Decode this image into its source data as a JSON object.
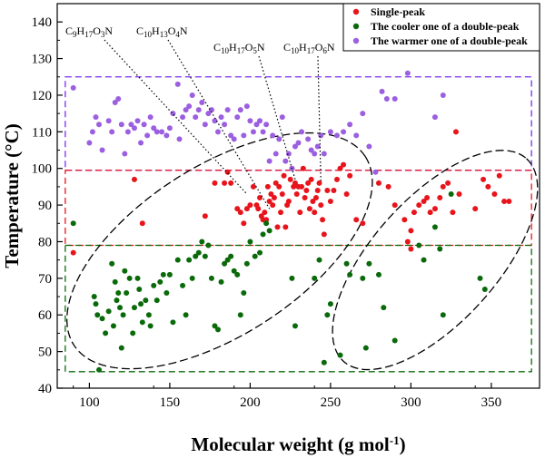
{
  "chart_data": {
    "type": "scatter",
    "title": "",
    "xlabel": "Molecular weight (g mol-1)",
    "ylabel": "Temperature (°C)",
    "xlim": [
      80,
      380
    ],
    "ylim": [
      40,
      145
    ],
    "xticks": [
      100,
      150,
      200,
      250,
      300,
      350
    ],
    "yticks": [
      40,
      50,
      60,
      70,
      80,
      90,
      100,
      110,
      120,
      130,
      140
    ],
    "grid": false,
    "legend_position": "top-right",
    "series": [
      {
        "name": "Single-peak",
        "color": "#e8141c",
        "points": [
          [
            90,
            77
          ],
          [
            128,
            97
          ],
          [
            133,
            85
          ],
          [
            172,
            87
          ],
          [
            178,
            96
          ],
          [
            184,
            96
          ],
          [
            186,
            99
          ],
          [
            188,
            96
          ],
          [
            192,
            89
          ],
          [
            194,
            88
          ],
          [
            196,
            85
          ],
          [
            198,
            89
          ],
          [
            200,
            90
          ],
          [
            202,
            95
          ],
          [
            204,
            90
          ],
          [
            205,
            89
          ],
          [
            206,
            92
          ],
          [
            207,
            87
          ],
          [
            208,
            86
          ],
          [
            209,
            88
          ],
          [
            210,
            86
          ],
          [
            211,
            95
          ],
          [
            212,
            91
          ],
          [
            213,
            93
          ],
          [
            214,
            90
          ],
          [
            215,
            92
          ],
          [
            216,
            96
          ],
          [
            217,
            84
          ],
          [
            218,
            95
          ],
          [
            219,
            88
          ],
          [
            220,
            93
          ],
          [
            221,
            98
          ],
          [
            222,
            84
          ],
          [
            223,
            90
          ],
          [
            224,
            91
          ],
          [
            225,
            97
          ],
          [
            226,
            100
          ],
          [
            227,
            95
          ],
          [
            228,
            96
          ],
          [
            229,
            93
          ],
          [
            230,
            95
          ],
          [
            231,
            88
          ],
          [
            232,
            95
          ],
          [
            233,
            100
          ],
          [
            234,
            92
          ],
          [
            235,
            94
          ],
          [
            236,
            96
          ],
          [
            237,
            89
          ],
          [
            238,
            97
          ],
          [
            239,
            91
          ],
          [
            240,
            88
          ],
          [
            241,
            92
          ],
          [
            242,
            94
          ],
          [
            243,
            96
          ],
          [
            244,
            90
          ],
          [
            245,
            86
          ],
          [
            246,
            82
          ],
          [
            248,
            94
          ],
          [
            250,
            91
          ],
          [
            252,
            94
          ],
          [
            254,
            97
          ],
          [
            256,
            100
          ],
          [
            258,
            101
          ],
          [
            260,
            93
          ],
          [
            262,
            98
          ],
          [
            266,
            86
          ],
          [
            270,
            85
          ],
          [
            280,
            96
          ],
          [
            286,
            95
          ],
          [
            290,
            90
          ],
          [
            296,
            86
          ],
          [
            298,
            80
          ],
          [
            300,
            83
          ],
          [
            302,
            88
          ],
          [
            305,
            90
          ],
          [
            308,
            91
          ],
          [
            310,
            92
          ],
          [
            312,
            88
          ],
          [
            315,
            89
          ],
          [
            318,
            92
          ],
          [
            320,
            95
          ],
          [
            323,
            96
          ],
          [
            326,
            88
          ],
          [
            328,
            110
          ],
          [
            330,
            93
          ],
          [
            340,
            89
          ],
          [
            345,
            97
          ],
          [
            348,
            95
          ],
          [
            352,
            93
          ],
          [
            355,
            98
          ],
          [
            358,
            91
          ],
          [
            361,
            91
          ],
          [
            300,
            78
          ]
        ]
      },
      {
        "name": "The cooler one of a double-peak",
        "color": "#0a6a0a",
        "points": [
          [
            90,
            85
          ],
          [
            103,
            65
          ],
          [
            104,
            63
          ],
          [
            105,
            60
          ],
          [
            106,
            45
          ],
          [
            108,
            59
          ],
          [
            110,
            55
          ],
          [
            112,
            61
          ],
          [
            114,
            74
          ],
          [
            115,
            57
          ],
          [
            116,
            69
          ],
          [
            117,
            64
          ],
          [
            118,
            66
          ],
          [
            119,
            62
          ],
          [
            120,
            51
          ],
          [
            121,
            60
          ],
          [
            122,
            72
          ],
          [
            123,
            66
          ],
          [
            125,
            70
          ],
          [
            127,
            55
          ],
          [
            128,
            62
          ],
          [
            130,
            70
          ],
          [
            131,
            67
          ],
          [
            132,
            63
          ],
          [
            133,
            58
          ],
          [
            135,
            64
          ],
          [
            137,
            60
          ],
          [
            138,
            57
          ],
          [
            140,
            68
          ],
          [
            142,
            64
          ],
          [
            144,
            69
          ],
          [
            146,
            71
          ],
          [
            148,
            66
          ],
          [
            150,
            71
          ],
          [
            152,
            58
          ],
          [
            155,
            75
          ],
          [
            158,
            68
          ],
          [
            160,
            60
          ],
          [
            162,
            75
          ],
          [
            164,
            70
          ],
          [
            166,
            76
          ],
          [
            168,
            77
          ],
          [
            170,
            80
          ],
          [
            172,
            76
          ],
          [
            174,
            79
          ],
          [
            176,
            70
          ],
          [
            178,
            57
          ],
          [
            180,
            56
          ],
          [
            182,
            69
          ],
          [
            184,
            74
          ],
          [
            186,
            75
          ],
          [
            188,
            76
          ],
          [
            190,
            72
          ],
          [
            192,
            71
          ],
          [
            194,
            60
          ],
          [
            196,
            66
          ],
          [
            198,
            74
          ],
          [
            200,
            80
          ],
          [
            203,
            76
          ],
          [
            206,
            77
          ],
          [
            208,
            82
          ],
          [
            210,
            85
          ],
          [
            212,
            83
          ],
          [
            226,
            70
          ],
          [
            228,
            57
          ],
          [
            240,
            70
          ],
          [
            243,
            75
          ],
          [
            246,
            47
          ],
          [
            248,
            60
          ],
          [
            250,
            63
          ],
          [
            256,
            49
          ],
          [
            260,
            74
          ],
          [
            262,
            71
          ],
          [
            270,
            70
          ],
          [
            272,
            51
          ],
          [
            274,
            74
          ],
          [
            280,
            71
          ],
          [
            283,
            62
          ],
          [
            290,
            53
          ],
          [
            305,
            79
          ],
          [
            308,
            75
          ],
          [
            315,
            84
          ],
          [
            318,
            78
          ],
          [
            320,
            60
          ],
          [
            325,
            93
          ],
          [
            343,
            70
          ],
          [
            346,
            67
          ]
        ]
      },
      {
        "name": "The warmer one of a double-peak",
        "color": "#9b5fe0",
        "points": [
          [
            90,
            122
          ],
          [
            100,
            107
          ],
          [
            102,
            110
          ],
          [
            104,
            114
          ],
          [
            106,
            112
          ],
          [
            108,
            105
          ],
          [
            112,
            113
          ],
          [
            114,
            110
          ],
          [
            116,
            118
          ],
          [
            118,
            119
          ],
          [
            120,
            112
          ],
          [
            122,
            104
          ],
          [
            124,
            110
          ],
          [
            126,
            112
          ],
          [
            128,
            111
          ],
          [
            130,
            113
          ],
          [
            132,
            107
          ],
          [
            134,
            112
          ],
          [
            136,
            109
          ],
          [
            138,
            114
          ],
          [
            140,
            111
          ],
          [
            142,
            110
          ],
          [
            145,
            110
          ],
          [
            148,
            109
          ],
          [
            150,
            111
          ],
          [
            152,
            115
          ],
          [
            155,
            123
          ],
          [
            156,
            108
          ],
          [
            158,
            114
          ],
          [
            160,
            116
          ],
          [
            162,
            117
          ],
          [
            164,
            120
          ],
          [
            166,
            114
          ],
          [
            168,
            116
          ],
          [
            170,
            118
          ],
          [
            172,
            112
          ],
          [
            174,
            115
          ],
          [
            176,
            116
          ],
          [
            178,
            113
          ],
          [
            180,
            110
          ],
          [
            182,
            114
          ],
          [
            184,
            112
          ],
          [
            186,
            116
          ],
          [
            188,
            109
          ],
          [
            190,
            108
          ],
          [
            192,
            114
          ],
          [
            194,
            116
          ],
          [
            196,
            109
          ],
          [
            198,
            117
          ],
          [
            200,
            113
          ],
          [
            202,
            110
          ],
          [
            204,
            112
          ],
          [
            206,
            113
          ],
          [
            208,
            110
          ],
          [
            210,
            112
          ],
          [
            212,
            102
          ],
          [
            214,
            109
          ],
          [
            216,
            104
          ],
          [
            218,
            108
          ],
          [
            220,
            114
          ],
          [
            222,
            102
          ],
          [
            224,
            104
          ],
          [
            226,
            100
          ],
          [
            228,
            106
          ],
          [
            230,
            107
          ],
          [
            232,
            110
          ],
          [
            236,
            108
          ],
          [
            238,
            105
          ],
          [
            240,
            104
          ],
          [
            242,
            106
          ],
          [
            244,
            109
          ],
          [
            246,
            104
          ],
          [
            250,
            110
          ],
          [
            254,
            109
          ],
          [
            258,
            110
          ],
          [
            262,
            112
          ],
          [
            266,
            109
          ],
          [
            270,
            115
          ],
          [
            274,
            106
          ],
          [
            278,
            99
          ],
          [
            282,
            121
          ],
          [
            285,
            119
          ],
          [
            290,
            119
          ],
          [
            298,
            126
          ],
          [
            315,
            114
          ],
          [
            320,
            120
          ]
        ]
      }
    ],
    "annotations": [
      {
        "label": "C9H17O3N",
        "base": "C",
        "sub1": "9",
        "mid1": "H",
        "sub2": "17",
        "mid2": "O",
        "sub3": "3",
        "end": "N",
        "target": [
          198,
          93
        ]
      },
      {
        "label": "C10H13O4N",
        "base": "C",
        "sub1": "10",
        "mid1": "H",
        "sub2": "13",
        "mid2": "O",
        "sub3": "4",
        "end": "N",
        "target": [
          212,
          89
        ]
      },
      {
        "label": "C10H17O5N",
        "base": "C",
        "sub1": "10",
        "mid1": "H",
        "sub2": "17",
        "mid2": "O",
        "sub3": "5",
        "end": "N",
        "target": [
          228,
          97
        ]
      },
      {
        "label": "C10H17O6N",
        "base": "C",
        "sub1": "10",
        "mid1": "H",
        "sub2": "17",
        "mid2": "O",
        "sub3": "6",
        "end": "N",
        "target": [
          244,
          96
        ]
      }
    ],
    "regions": [
      {
        "color": "#7a2ef0",
        "x": [
          85,
          375
        ],
        "y": [
          99.5,
          125
        ]
      },
      {
        "color": "#e8141c",
        "x": [
          85,
          375
        ],
        "y": [
          79,
          99.5
        ]
      },
      {
        "color": "#0a6a0a",
        "x": [
          85,
          375
        ],
        "y": [
          44.5,
          79
        ]
      }
    ],
    "ellipses": [
      {
        "cx": 181,
        "cy": 77.5,
        "rx": 108,
        "ry": 23,
        "angle_deg": 33
      },
      {
        "cx": 315,
        "cy": 75,
        "rx": 85,
        "ry": 17,
        "angle_deg": 48
      }
    ]
  }
}
